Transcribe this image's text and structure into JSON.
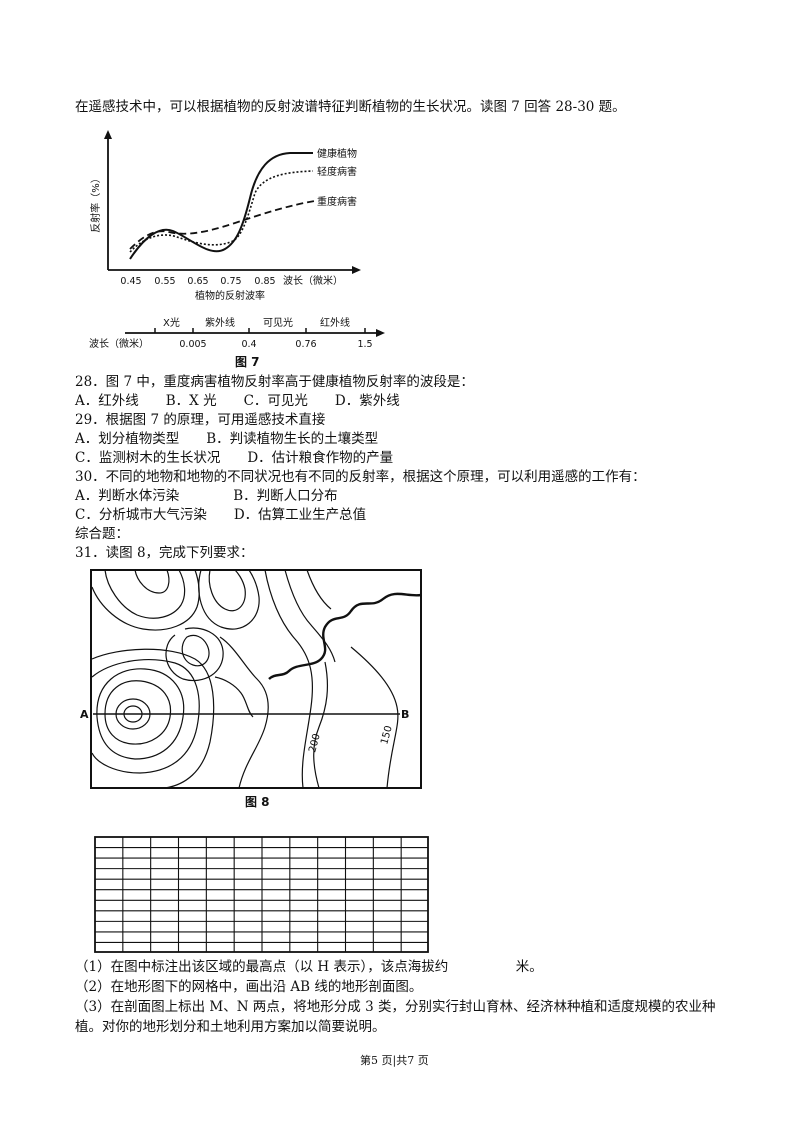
{
  "intro": "在遥感技术中，可以根据植物的反射波谱特征判断植物的生长状况。读图 7 回答 28-30 题。",
  "fig7": {
    "ylabel": "反射率（%）",
    "legend": [
      "健康植物",
      "轻度病害",
      "重度病害"
    ],
    "x_ticks": [
      "0.45",
      "0.55",
      "0.65",
      "0.75",
      "0.85"
    ],
    "x_unit": "波长（微米）",
    "subtitle": "植物的反射波率",
    "band_labels": [
      "X光",
      "紫外线",
      "可见光",
      "红外线"
    ],
    "band_axis_label": "波长（微米）",
    "band_ticks": [
      "0.005",
      "0.4",
      "0.76",
      "1.5"
    ],
    "caption": "图 7"
  },
  "questions": [
    {
      "stem": "28．图 7 中，重度病害植物反射率高于健康植物反射率的波段是：",
      "options_lines": [
        "A．红外线　　B．X 光　　C．可见光　　D．紫外线"
      ]
    },
    {
      "stem": "29．根据图 7 的原理，可用遥感技术直接",
      "options_lines": [
        "A．划分植物类型　　B．判读植物生长的土壤类型",
        "C．监测树木的生长状况　　D．估计粮食作物的产量"
      ]
    },
    {
      "stem": "30．不同的地物和地物的不同状况也有不同的反射率，根据这个原理，可以利用遥感的工作有：",
      "options_lines": [
        "A．判断水体污染　　　　B．判断人口分布",
        "C．分析城市大气污染　　D．估算工业生产总值"
      ]
    }
  ],
  "section_label": "综合题：",
  "q31": "31．读图 8，完成下列要求：",
  "fig8": {
    "point_a": "A",
    "point_b": "B",
    "contour_labels": [
      "200",
      "150"
    ],
    "caption": "图 8"
  },
  "sub_questions": [
    "（1）在图中标注出该区域的最高点（以 H 表示），该点海拔约　　　　　米。",
    "（2）在地形图下的网格中，画出沿 AB 线的地形剖面图。",
    "（3）在剖面图上标出 M、N 两点，将地形分成 3 类，分别实行封山育林、经济林种植和适度规模的农业种",
    "植。对你的地形划分和土地利用方案加以简要说明。"
  ],
  "footer": "第5 页|共7 页"
}
